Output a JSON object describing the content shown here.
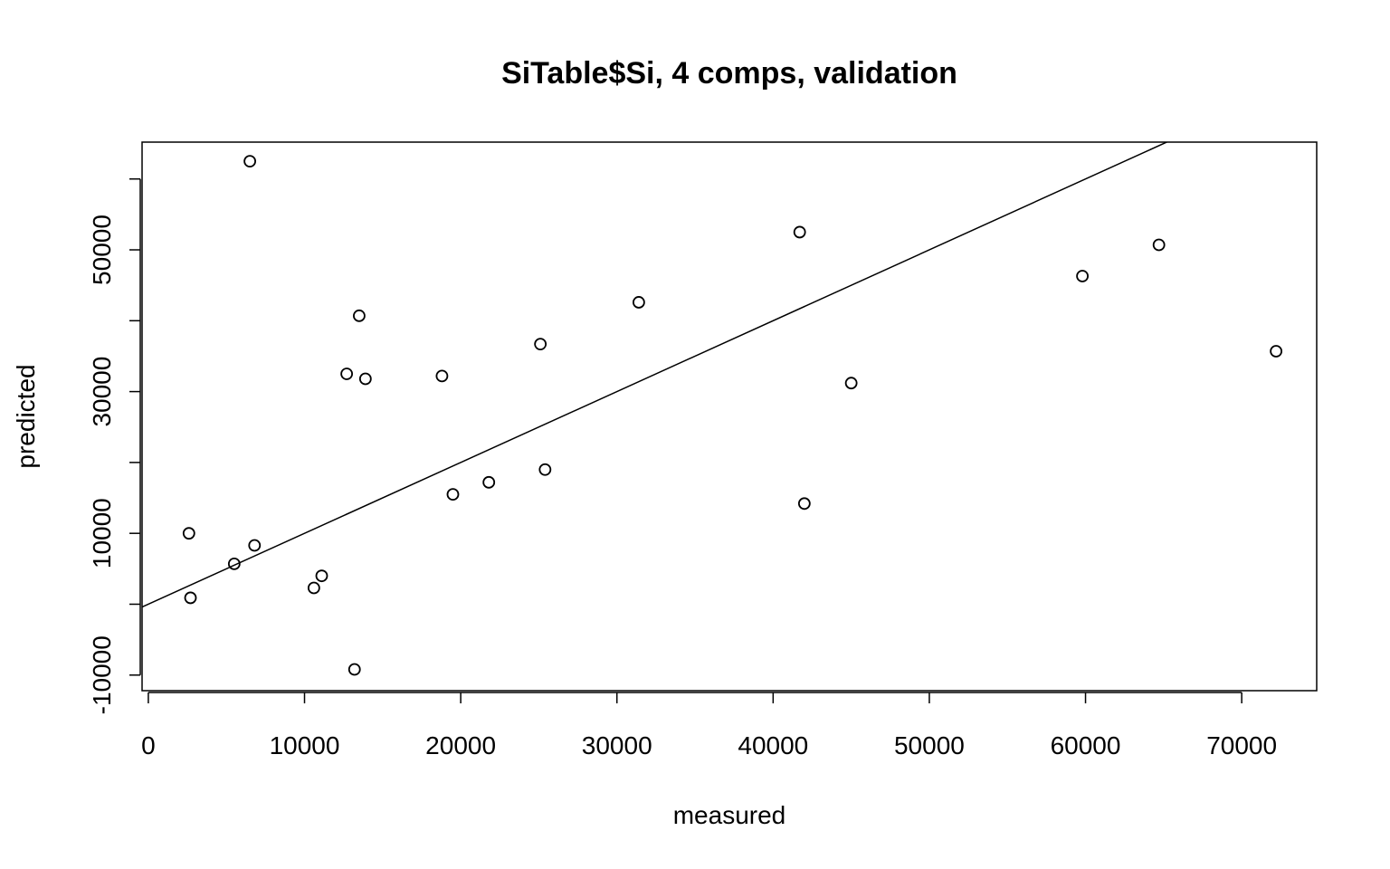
{
  "chart_data": {
    "type": "scatter",
    "title": "SiTable$Si, 4 comps, validation",
    "xlabel": "measured",
    "ylabel": "predicted",
    "xlim": [
      -400,
      74800
    ],
    "ylim": [
      -12200,
      65200
    ],
    "x_ticks": [
      0,
      10000,
      20000,
      30000,
      40000,
      50000,
      60000,
      70000
    ],
    "y_ticks": [
      -10000,
      10000,
      30000,
      50000
    ],
    "y_minor_ticks": [
      0,
      20000,
      40000,
      60000
    ],
    "reference_line": {
      "intercept": 0,
      "slope": 1
    },
    "points": [
      {
        "x": 6500,
        "y": 62500
      },
      {
        "x": 41700,
        "y": 52500
      },
      {
        "x": 64700,
        "y": 50700
      },
      {
        "x": 59800,
        "y": 46300
      },
      {
        "x": 31400,
        "y": 42600
      },
      {
        "x": 13500,
        "y": 40700
      },
      {
        "x": 25100,
        "y": 36700
      },
      {
        "x": 72200,
        "y": 35700
      },
      {
        "x": 12700,
        "y": 32500
      },
      {
        "x": 18800,
        "y": 32200
      },
      {
        "x": 13900,
        "y": 31800
      },
      {
        "x": 45000,
        "y": 31200
      },
      {
        "x": 25400,
        "y": 19000
      },
      {
        "x": 21800,
        "y": 17200
      },
      {
        "x": 19500,
        "y": 15500
      },
      {
        "x": 42000,
        "y": 14200
      },
      {
        "x": 2600,
        "y": 10000
      },
      {
        "x": 6800,
        "y": 8300
      },
      {
        "x": 5500,
        "y": 5700
      },
      {
        "x": 11100,
        "y": 4000
      },
      {
        "x": 10600,
        "y": 2300
      },
      {
        "x": 2700,
        "y": 900
      },
      {
        "x": 13200,
        "y": -9200
      }
    ]
  }
}
